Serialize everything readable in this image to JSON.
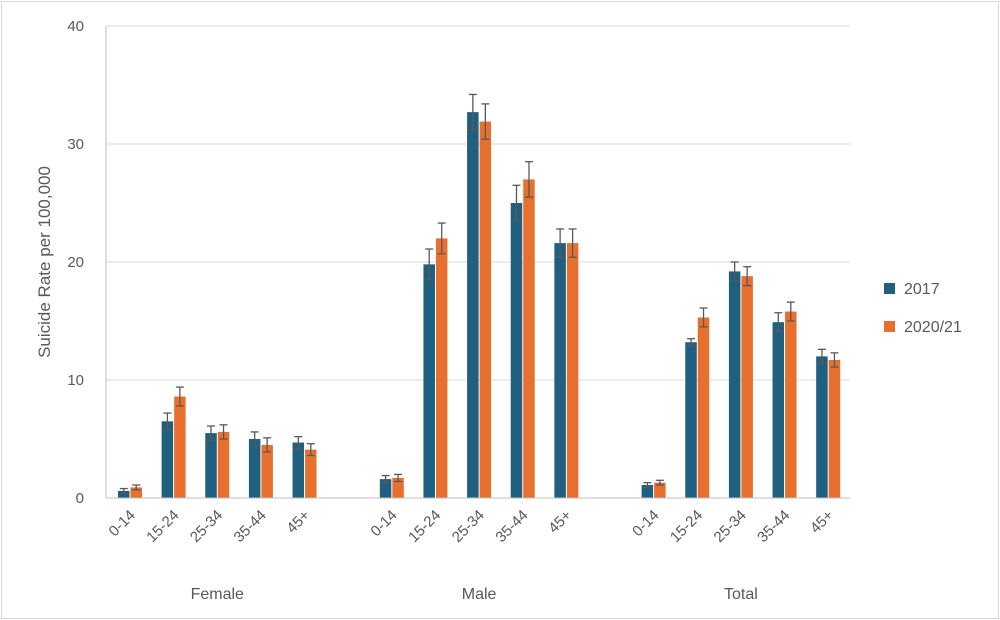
{
  "chart_data": {
    "type": "bar",
    "title": "",
    "xlabel": "",
    "ylabel": "Suicide Rate per 100,000",
    "ylim": [
      0,
      40
    ],
    "yticks": [
      0,
      10,
      20,
      30,
      40
    ],
    "grid": true,
    "legend_position": "right",
    "groups": [
      {
        "name": "Female",
        "categories": [
          "0-14",
          "15-24",
          "25-34",
          "35-44",
          "45+"
        ],
        "series": [
          {
            "name": "2017",
            "values": [
              0.6,
              6.5,
              5.5,
              5.0,
              4.7
            ],
            "err": [
              0.2,
              0.7,
              0.6,
              0.6,
              0.5
            ]
          },
          {
            "name": "2020/21",
            "values": [
              0.9,
              8.6,
              5.6,
              4.5,
              4.1
            ],
            "err": [
              0.2,
              0.8,
              0.6,
              0.6,
              0.5
            ]
          }
        ]
      },
      {
        "name": "Male",
        "categories": [
          "0-14",
          "15-24",
          "25-34",
          "35-44",
          "45+"
        ],
        "series": [
          {
            "name": "2017",
            "values": [
              1.6,
              19.8,
              32.7,
              25.0,
              21.6
            ],
            "err": [
              0.3,
              1.3,
              1.5,
              1.5,
              1.2
            ]
          },
          {
            "name": "2020/21",
            "values": [
              1.7,
              22.0,
              31.9,
              27.0,
              21.6
            ],
            "err": [
              0.3,
              1.3,
              1.5,
              1.5,
              1.2
            ]
          }
        ]
      },
      {
        "name": "Total",
        "categories": [
          "0-14",
          "15-24",
          "25-34",
          "35-44",
          "45+"
        ],
        "series": [
          {
            "name": "2017",
            "values": [
              1.1,
              13.2,
              19.2,
              14.9,
              12.0
            ],
            "err": [
              0.2,
              0.3,
              0.8,
              0.8,
              0.6
            ]
          },
          {
            "name": "2020/21",
            "values": [
              1.3,
              15.3,
              18.8,
              15.8,
              11.7
            ],
            "err": [
              0.2,
              0.8,
              0.8,
              0.8,
              0.6
            ]
          }
        ]
      }
    ],
    "series_colors": {
      "2017": "#1f5f7f",
      "2020/21": "#e8702f"
    },
    "error_bar_color": "#595959",
    "grid_color": "#d9d9d9"
  }
}
